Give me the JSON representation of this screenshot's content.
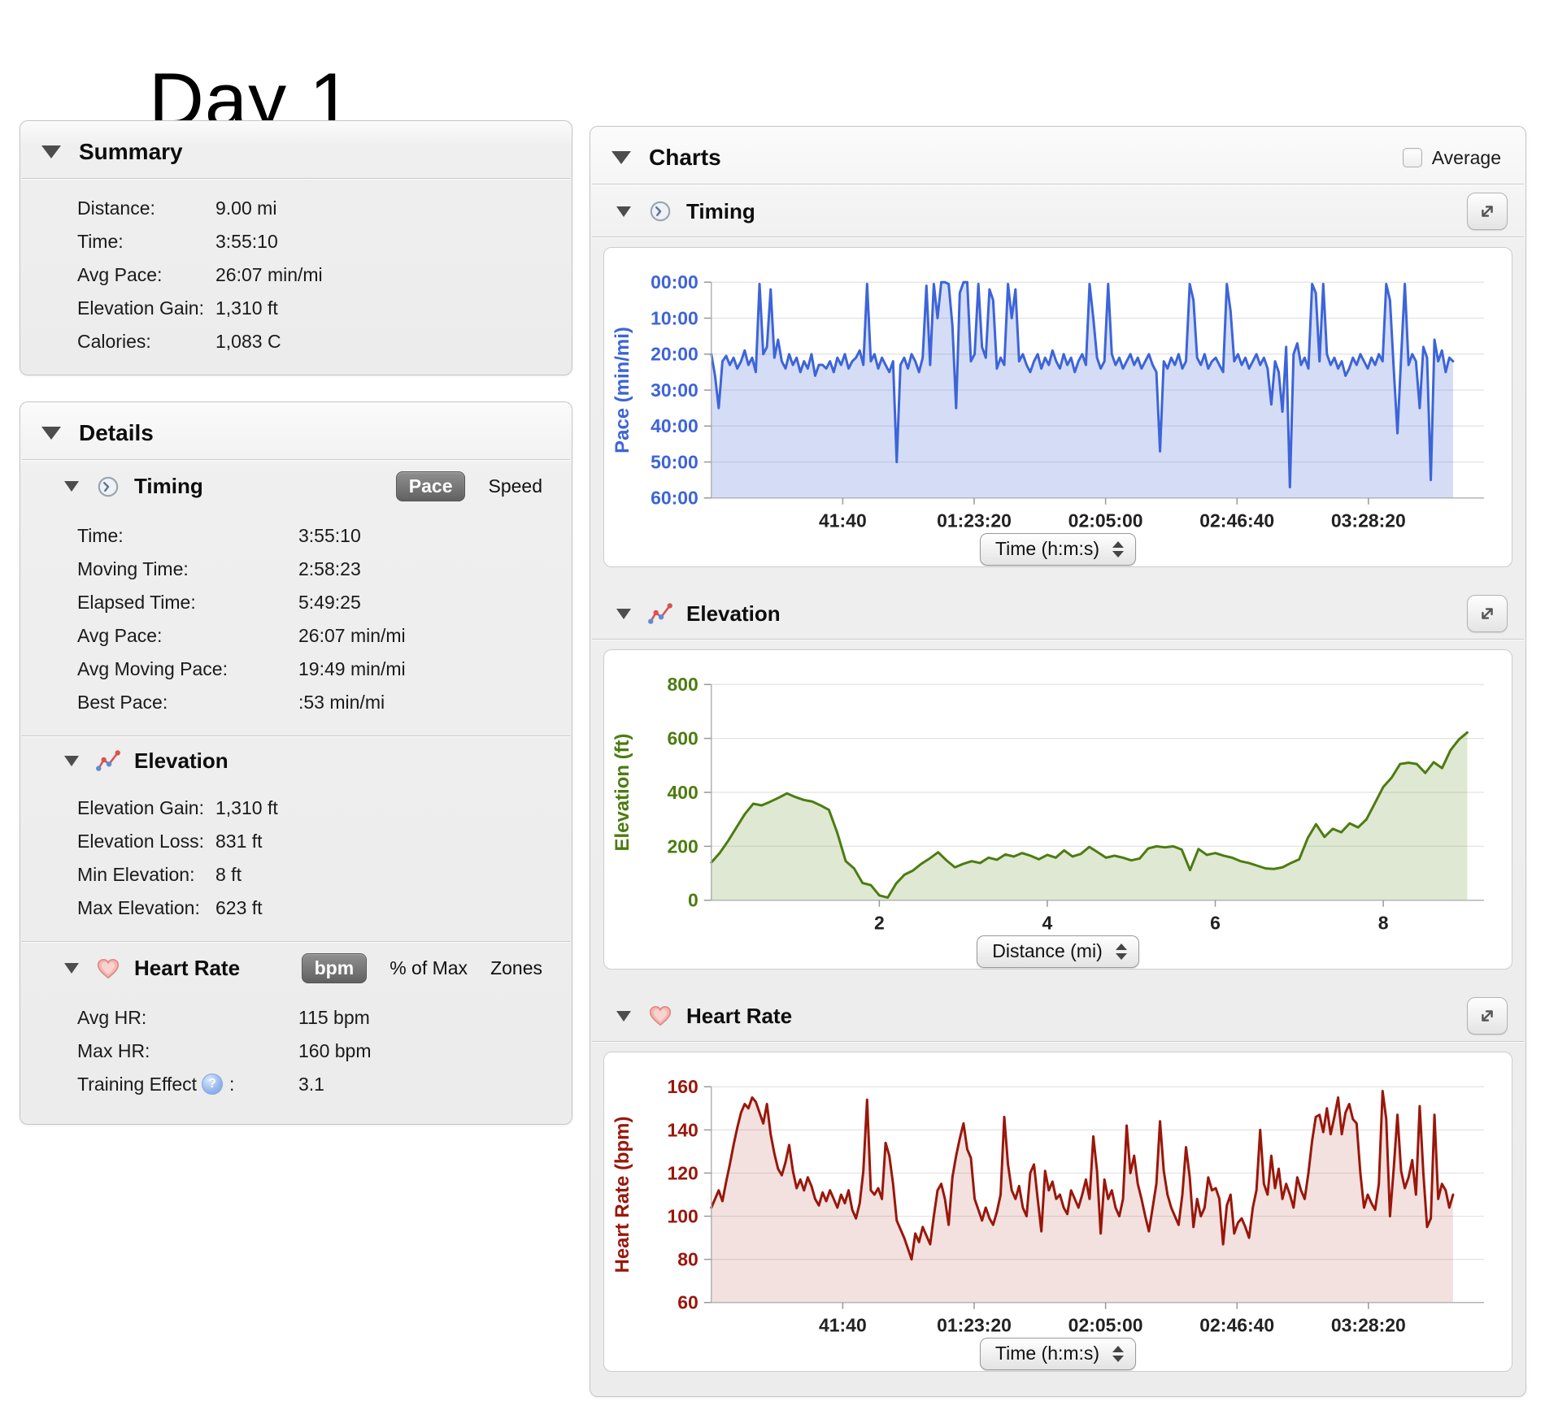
{
  "page": {
    "title": "Day 1"
  },
  "summary": {
    "title": "Summary",
    "rows": [
      {
        "label": "Distance:",
        "value": "9.00 mi"
      },
      {
        "label": "Time:",
        "value": "3:55:10"
      },
      {
        "label": "Avg Pace:",
        "value": "26:07 min/mi"
      },
      {
        "label": "Elevation Gain:",
        "value": "1,310 ft"
      },
      {
        "label": "Calories:",
        "value": "1,083 C"
      }
    ]
  },
  "details": {
    "title": "Details",
    "timing": {
      "title": "Timing",
      "active_toggle": "Pace",
      "other_toggle": "Speed",
      "rows": [
        {
          "label": "Time:",
          "value": "3:55:10"
        },
        {
          "label": "Moving Time:",
          "value": "2:58:23"
        },
        {
          "label": "Elapsed Time:",
          "value": "5:49:25"
        },
        {
          "label": "Avg Pace:",
          "value": "26:07 min/mi"
        },
        {
          "label": "Avg Moving Pace:",
          "value": "19:49 min/mi"
        },
        {
          "label": "Best Pace:",
          "value": ":53 min/mi"
        }
      ]
    },
    "elevation": {
      "title": "Elevation",
      "rows": [
        {
          "label": "Elevation Gain:",
          "value": "1,310 ft"
        },
        {
          "label": "Elevation Loss:",
          "value": "831 ft"
        },
        {
          "label": "Min Elevation:",
          "value": "8 ft"
        },
        {
          "label": "Max Elevation:",
          "value": "623 ft"
        }
      ]
    },
    "heart_rate": {
      "title": "Heart Rate",
      "active_toggle": "bpm",
      "other_toggles": [
        "% of Max",
        "Zones"
      ],
      "rows": [
        {
          "label": "Avg HR:",
          "value": "115 bpm"
        },
        {
          "label": "Max HR:",
          "value": "160 bpm"
        }
      ],
      "training_effect": {
        "label": "Training Effect",
        "suffix": ":",
        "value": "3.1"
      }
    }
  },
  "charts": {
    "title": "Charts",
    "average_label": "Average",
    "sections": [
      {
        "title": "Timing"
      },
      {
        "title": "Elevation"
      },
      {
        "title": "Heart Rate"
      }
    ]
  },
  "chart_data": [
    {
      "id": "timing",
      "type": "area",
      "title": "Timing",
      "ylabel": "Pace (min/mi)",
      "x_selector_label": "Time (h:m:s)",
      "y_inverted": true,
      "ylim": [
        0,
        60
      ],
      "yticks": [
        [
          0,
          "00:00"
        ],
        [
          10,
          "10:00"
        ],
        [
          20,
          "20:00"
        ],
        [
          30,
          "30:00"
        ],
        [
          40,
          "40:00"
        ],
        [
          50,
          "50:00"
        ],
        [
          60,
          "60:00"
        ]
      ],
      "xlim": [
        0,
        14700
      ],
      "xticks": [
        [
          2500,
          "41:40"
        ],
        [
          5000,
          "01:23:20"
        ],
        [
          7500,
          "02:05:00"
        ],
        [
          10000,
          "02:46:40"
        ],
        [
          12500,
          "03:28:20"
        ]
      ],
      "x_step": 70.55,
      "line_color": "#3D64D8",
      "fill_color": "rgba(82,120,214,0.25)",
      "axis_label_color": "#3D64D8",
      "grid": true,
      "values": [
        20,
        26,
        35,
        22,
        20.5,
        23,
        21,
        24,
        22,
        19,
        23,
        21,
        25,
        0.5,
        20,
        18,
        2,
        21,
        16,
        22,
        24,
        20,
        23,
        21,
        25,
        22,
        24,
        20,
        26,
        23,
        23,
        24,
        22,
        25,
        21,
        23,
        20,
        24,
        22,
        21,
        19,
        23,
        0.5,
        22,
        20,
        24,
        21,
        23,
        25,
        22,
        50,
        23,
        21,
        24,
        20,
        22,
        25,
        21,
        1,
        23,
        0.5,
        10,
        0,
        0,
        0.5,
        12,
        35,
        3,
        0,
        0,
        22,
        20,
        0.5,
        18,
        21,
        2,
        5,
        24,
        21,
        23,
        0.5,
        10,
        2,
        22,
        20,
        23,
        25,
        22,
        20,
        24,
        21,
        23,
        19,
        22,
        24,
        20,
        23,
        21,
        25,
        22,
        20,
        23,
        0.5,
        10,
        21,
        24,
        22,
        0.5,
        20,
        23,
        21,
        24,
        22,
        20,
        23,
        21,
        24,
        22,
        20,
        23,
        25,
        47,
        22,
        24,
        21,
        23,
        20,
        24,
        22,
        0.5,
        5,
        21,
        23,
        20,
        24,
        22,
        21,
        23,
        25,
        0.5,
        8,
        22,
        20,
        23,
        21,
        24,
        22,
        20,
        23,
        21,
        24,
        34,
        22,
        25,
        36,
        18,
        57,
        20,
        17,
        23,
        21,
        24,
        0.5,
        3,
        22,
        0.5,
        20,
        23,
        21,
        24,
        22,
        26,
        24,
        21,
        23,
        20,
        22,
        24,
        21,
        23,
        20,
        22,
        0.5,
        5,
        24,
        42,
        21,
        0.5,
        23,
        20,
        22,
        35,
        18,
        21,
        55,
        16,
        22,
        19,
        25,
        21,
        22
      ]
    },
    {
      "id": "elevation",
      "type": "area",
      "title": "Elevation",
      "ylabel": "Elevation (ft)",
      "x_selector_label": "Distance (mi)",
      "y_inverted": false,
      "ylim": [
        0,
        800
      ],
      "yticks": [
        [
          0,
          "0"
        ],
        [
          200,
          "200"
        ],
        [
          400,
          "400"
        ],
        [
          600,
          "600"
        ],
        [
          800,
          "800"
        ]
      ],
      "xlim": [
        0,
        9.2
      ],
      "xticks": [
        [
          2,
          "2"
        ],
        [
          4,
          "4"
        ],
        [
          6,
          "6"
        ],
        [
          8,
          "8"
        ]
      ],
      "x_step": 0.1,
      "line_color": "#4C7C10",
      "fill_color": "rgba(110,150,50,0.22)",
      "axis_label_color": "#4C7C10",
      "grid": true,
      "values": [
        140,
        175,
        220,
        270,
        320,
        358,
        352,
        365,
        380,
        396,
        383,
        372,
        366,
        352,
        335,
        250,
        145,
        118,
        64,
        56,
        18,
        10,
        62,
        95,
        110,
        135,
        155,
        178,
        148,
        122,
        135,
        145,
        138,
        158,
        150,
        170,
        162,
        175,
        165,
        152,
        168,
        158,
        185,
        162,
        172,
        198,
        178,
        158,
        165,
        158,
        148,
        155,
        192,
        200,
        196,
        200,
        188,
        112,
        190,
        168,
        175,
        165,
        158,
        145,
        138,
        128,
        118,
        116,
        122,
        138,
        152,
        230,
        282,
        235,
        265,
        252,
        285,
        270,
        300,
        360,
        420,
        455,
        505,
        510,
        505,
        472,
        512,
        490,
        556,
        596,
        622
      ]
    },
    {
      "id": "heart_rate",
      "type": "area",
      "title": "Heart Rate",
      "ylabel": "Heart Rate (bpm)",
      "x_selector_label": "Time (h:m:s)",
      "y_inverted": false,
      "ylim": [
        60,
        160
      ],
      "yticks": [
        [
          60,
          "60"
        ],
        [
          80,
          "80"
        ],
        [
          100,
          "100"
        ],
        [
          120,
          "120"
        ],
        [
          140,
          "140"
        ],
        [
          160,
          "160"
        ]
      ],
      "xlim": [
        0,
        14700
      ],
      "xticks": [
        [
          2500,
          "41:40"
        ],
        [
          5000,
          "01:23:20"
        ],
        [
          7500,
          "02:05:00"
        ],
        [
          10000,
          "02:46:40"
        ],
        [
          12500,
          "03:28:20"
        ]
      ],
      "x_step": 70.55,
      "line_color": "#99170B",
      "fill_color": "rgba(153,23,11,0.13)",
      "axis_label_color": "#99170B",
      "grid": true,
      "values": [
        104,
        108,
        112,
        107,
        116,
        124,
        133,
        141,
        148,
        152,
        150,
        155,
        153,
        148,
        143,
        152,
        138,
        129,
        122,
        119,
        125,
        133,
        121,
        113,
        117,
        112,
        118,
        114,
        108,
        105,
        111,
        107,
        112,
        108,
        104,
        110,
        106,
        112,
        103,
        99,
        106,
        121,
        154,
        112,
        110,
        113,
        108,
        134,
        128,
        115,
        98,
        94,
        90,
        85,
        80,
        92,
        88,
        95,
        91,
        87,
        100,
        112,
        115,
        108,
        96,
        118,
        128,
        136,
        143,
        131,
        127,
        108,
        103,
        98,
        104,
        99,
        96,
        102,
        110,
        146,
        124,
        112,
        108,
        114,
        104,
        100,
        120,
        124,
        108,
        93,
        121,
        112,
        116,
        108,
        110,
        104,
        101,
        112,
        108,
        104,
        110,
        117,
        108,
        137,
        121,
        92,
        117,
        108,
        112,
        104,
        100,
        108,
        142,
        120,
        128,
        115,
        108,
        100,
        93,
        104,
        115,
        144,
        121,
        110,
        104,
        100,
        96,
        110,
        132,
        118,
        95,
        108,
        100,
        104,
        118,
        112,
        113,
        108,
        87,
        105,
        110,
        92,
        97,
        99,
        95,
        90,
        104,
        112,
        140,
        115,
        110,
        128,
        113,
        122,
        108,
        115,
        110,
        104,
        118,
        112,
        108,
        120,
        135,
        146,
        147,
        139,
        150,
        138,
        146,
        155,
        138,
        148,
        152,
        145,
        143,
        120,
        104,
        110,
        106,
        103,
        115,
        158,
        145,
        100,
        122,
        147,
        121,
        113,
        118,
        126,
        110,
        151,
        120,
        95,
        99,
        147,
        108,
        115,
        112,
        104,
        110
      ]
    }
  ]
}
